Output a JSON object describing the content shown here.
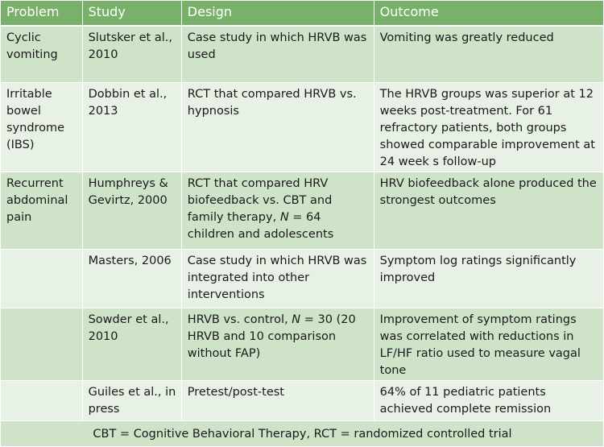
{
  "headers": [
    "Problem",
    "Study",
    "Design",
    "Outcome"
  ],
  "rows": [
    {
      "problem": "Cyclic vomiting",
      "study": "Slutsker et al., 2010",
      "design": "Case study in which HRVB was used",
      "outcome": "Vomiting was greatly reduced"
    },
    {
      "problem": "Irritable bowel syndrome (IBS)",
      "study": "Dobbin et al., 2013",
      "design": "RCT that compared HRVB vs. hypnosis",
      "outcome": "The HRVB groups was superior at 12 weeks post-treatment. For 61 refractory patients, both groups showed comparable improvement at  24 week s follow-up"
    },
    {
      "problem": "Recurrent abdominal pain",
      "study": "Humphreys & Gevirtz, 2000",
      "design_pre": "RCT that compared HRV biofeedback vs. CBT and family therapy, ",
      "design_n": "N",
      "design_post": " = 64 children and adolescents",
      "outcome": "HRV biofeedback alone produced the strongest outcomes"
    },
    {
      "problem": "",
      "study": "Masters, 2006",
      "design": "Case study in which HRVB was integrated into other interventions",
      "outcome": "Symptom log ratings significantly improved"
    },
    {
      "problem": "",
      "study": "Sowder et al., 2010",
      "design_pre": "HRVB vs. control, ",
      "design_n": "N",
      "design_post": " = 30 (20 HRVB and 10 comparison without FAP)",
      "outcome": "Improvement of symptom ratings was correlated with reductions in LF/HF ratio used to measure vagal tone"
    },
    {
      "problem": "",
      "study": "Guiles et al., in press",
      "design": "Pretest/post-test",
      "outcome": "64% of 11 pediatric patients achieved complete remission"
    }
  ],
  "footer": "CBT = Cognitive Behavioral Therapy, RCT = randomized controlled trial"
}
